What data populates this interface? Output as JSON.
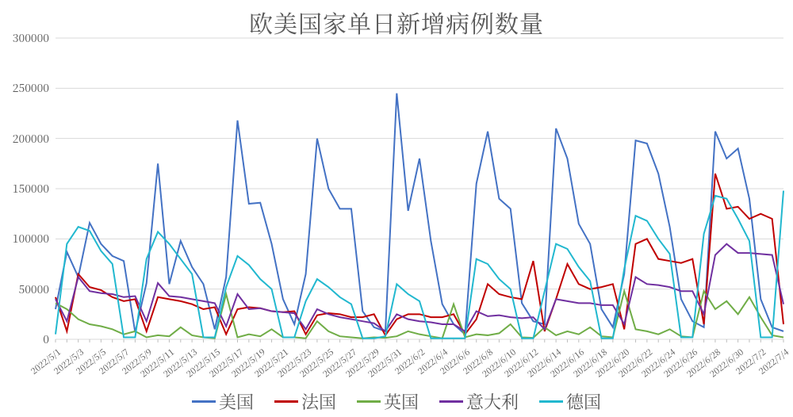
{
  "chart": {
    "type": "line",
    "title": "欧美国家单日新增病例数量",
    "title_fontsize": 30,
    "title_color": "#595959",
    "background_color": "#ffffff",
    "grid_color": "#d9d9d9",
    "axis_label_color": "#595959",
    "axis_label_fontsize_y": 14,
    "axis_label_fontsize_x": 11,
    "x_tick_rotation_deg": -38,
    "x_label_step": 2,
    "line_width": 2,
    "ylim": [
      0,
      300000
    ],
    "ytick_step": 50000,
    "yticks": [
      0,
      50000,
      100000,
      150000,
      200000,
      250000,
      300000
    ],
    "categories": [
      "2022/5/1",
      "2022/5/2",
      "2022/5/3",
      "2022/5/4",
      "2022/5/5",
      "2022/5/6",
      "2022/5/7",
      "2022/5/8",
      "2022/5/9",
      "2022/5/10",
      "2022/5/11",
      "2022/5/12",
      "2022/5/13",
      "2022/5/14",
      "2022/5/15",
      "2022/5/16",
      "2022/5/17",
      "2022/5/18",
      "2022/5/19",
      "2022/5/20",
      "2022/5/21",
      "2022/5/22",
      "2022/5/23",
      "2022/5/24",
      "2022/5/25",
      "2022/5/26",
      "2022/5/27",
      "2022/5/28",
      "2022/5/29",
      "2022/5/30",
      "2022/5/31",
      "2022/6/1",
      "2022/6/2",
      "2022/6/3",
      "2022/6/4",
      "2022/6/5",
      "2022/6/6",
      "2022/6/7",
      "2022/6/8",
      "2022/6/9",
      "2022/6/10",
      "2022/6/11",
      "2022/6/12",
      "2022/6/13",
      "2022/6/14",
      "2022/6/15",
      "2022/6/16",
      "2022/6/17",
      "2022/6/18",
      "2022/6/19",
      "2022/6/20",
      "2022/6/21",
      "2022/6/22",
      "2022/6/23",
      "2022/6/24",
      "2022/6/25",
      "2022/6/26",
      "2022/6/27",
      "2022/6/28",
      "2022/6/29",
      "2022/6/30",
      "2022/7/1",
      "2022/7/2",
      "2022/7/3",
      "2022/7/4"
    ],
    "series": [
      {
        "name": "美国",
        "color": "#4472c4",
        "values": [
          30000,
          87000,
          62000,
          116000,
          95000,
          83000,
          78000,
          7000,
          56000,
          175000,
          55000,
          98000,
          72000,
          55000,
          10000,
          62000,
          218000,
          135000,
          136000,
          95000,
          40000,
          15000,
          65000,
          200000,
          150000,
          130000,
          130000,
          28000,
          12000,
          8000,
          245000,
          128000,
          180000,
          98000,
          35000,
          15000,
          5000,
          155000,
          207000,
          140000,
          130000,
          36000,
          18000,
          15000,
          210000,
          180000,
          115000,
          95000,
          30000,
          12000,
          65000,
          198000,
          195000,
          165000,
          112000,
          40000,
          18000,
          12000,
          207000,
          180000,
          190000,
          140000,
          40000,
          12000,
          8000
        ]
      },
      {
        "name": "法国",
        "color": "#c00000",
        "values": [
          42000,
          8000,
          65000,
          52000,
          49000,
          42000,
          38000,
          40000,
          8000,
          42000,
          40000,
          38000,
          35000,
          30000,
          32000,
          5000,
          30000,
          32000,
          31000,
          28000,
          27000,
          28000,
          5000,
          24000,
          26000,
          25000,
          22000,
          22000,
          25000,
          4000,
          20000,
          25000,
          25000,
          22000,
          22000,
          25000,
          5000,
          20000,
          55000,
          45000,
          42000,
          40000,
          78000,
          8000,
          40000,
          75000,
          55000,
          50000,
          52000,
          55000,
          10000,
          95000,
          100000,
          80000,
          78000,
          76000,
          80000,
          15000,
          165000,
          130000,
          132000,
          120000,
          125000,
          120000,
          15000
        ]
      },
      {
        "name": "英国",
        "color": "#70ad47",
        "values": [
          36000,
          30000,
          20000,
          15000,
          13000,
          10000,
          5000,
          8000,
          2000,
          4000,
          3000,
          12000,
          4000,
          2000,
          1000,
          45000,
          2000,
          5000,
          3000,
          10000,
          2000,
          2000,
          1000,
          18000,
          8000,
          3000,
          2000,
          1000,
          2000,
          1500,
          3000,
          8000,
          5000,
          3000,
          1000,
          35000,
          2000,
          5000,
          4000,
          6000,
          15000,
          2000,
          1500,
          12000,
          4000,
          8000,
          5000,
          12000,
          3000,
          2000,
          48000,
          10000,
          8000,
          5000,
          10000,
          3000,
          2000,
          48000,
          30000,
          38000,
          25000,
          42000,
          22000,
          4000,
          2000
        ]
      },
      {
        "name": "意大利",
        "color": "#7030a0",
        "values": [
          40000,
          18000,
          62000,
          48000,
          46000,
          45000,
          42000,
          43000,
          18000,
          56000,
          43000,
          42000,
          40000,
          38000,
          36000,
          13000,
          45000,
          30000,
          31000,
          28000,
          27000,
          26000,
          10000,
          30000,
          25000,
          22000,
          20000,
          18000,
          16000,
          8000,
          25000,
          20000,
          18000,
          17000,
          15000,
          15000,
          8000,
          28000,
          23000,
          24000,
          22000,
          21000,
          22000,
          10000,
          40000,
          38000,
          36000,
          36000,
          34000,
          34000,
          15000,
          62000,
          55000,
          54000,
          52000,
          48000,
          48000,
          25000,
          84000,
          95000,
          86000,
          86000,
          85000,
          84000,
          35000
        ]
      },
      {
        "name": "德国",
        "color": "#22b8cf",
        "values": [
          5000,
          95000,
          112000,
          108000,
          88000,
          75000,
          2000,
          2000,
          80000,
          107000,
          95000,
          80000,
          65000,
          2000,
          2000,
          52000,
          83000,
          74000,
          60000,
          50000,
          2000,
          2000,
          38000,
          60000,
          52000,
          42000,
          35000,
          1000,
          1000,
          3000,
          55000,
          45000,
          38000,
          1000,
          1000,
          1000,
          1000,
          80000,
          75000,
          60000,
          50000,
          1000,
          1000,
          48000,
          95000,
          90000,
          72000,
          58000,
          1000,
          1000,
          70000,
          123000,
          118000,
          100000,
          85000,
          2000,
          2000,
          105000,
          143000,
          140000,
          120000,
          98000,
          2000,
          2000,
          148000
        ]
      }
    ],
    "legend": {
      "position": "bottom",
      "fontsize": 22,
      "swatch_width": 30,
      "swatch_thickness": 3,
      "text_color": "#595959"
    }
  }
}
